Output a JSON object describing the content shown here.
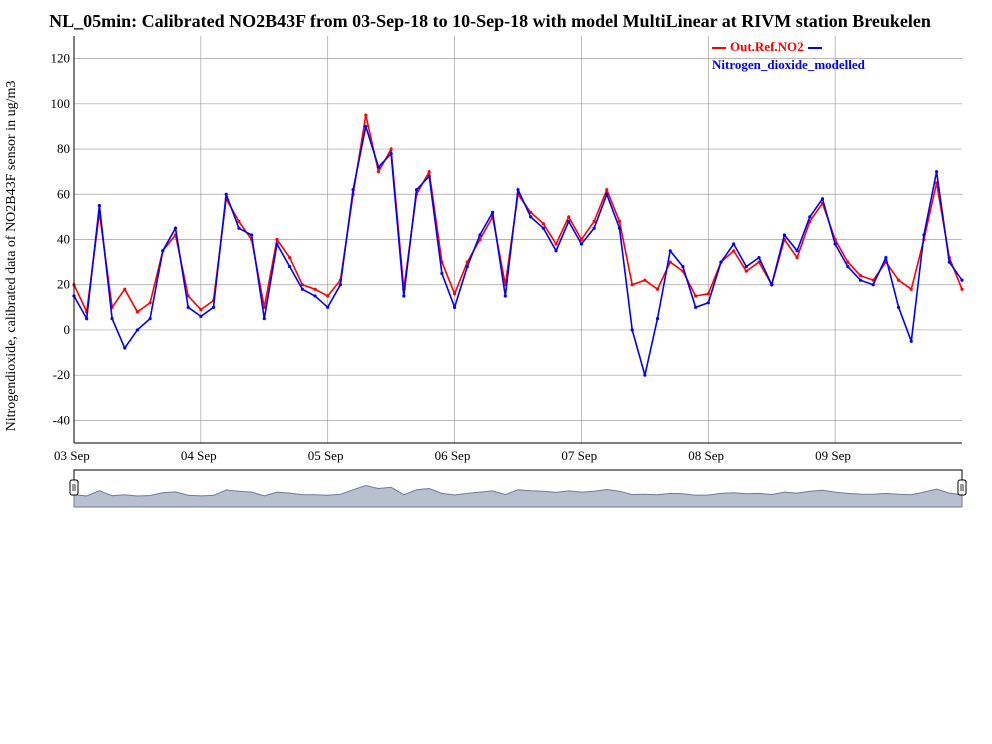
{
  "chart_data": {
    "type": "line",
    "title": "NL_05min: Calibrated NO2B43F from 03-Sep-18 to 10-Sep-18 with model MultiLinear at RIVM station Breukelen",
    "ylabel": "Nitrogendioxide, calibrated data of NO2B43F sensor in ug/m3",
    "xlabel": "",
    "x_ticks": [
      "03 Sep",
      "04 Sep",
      "05 Sep",
      "06 Sep",
      "07 Sep",
      "08 Sep",
      "09 Sep"
    ],
    "y_ticks": [
      -40,
      -20,
      0,
      20,
      40,
      60,
      80,
      100,
      120
    ],
    "xlim": [
      0,
      7
    ],
    "ylim": [
      -50,
      130
    ],
    "grid": true,
    "legend_position": "top-right",
    "series": [
      {
        "name": "Out.Ref.NO2",
        "color": "#ff0000",
        "x": [
          0,
          0.1,
          0.2,
          0.3,
          0.4,
          0.5,
          0.6,
          0.7,
          0.8,
          0.9,
          1.0,
          1.1,
          1.2,
          1.3,
          1.4,
          1.5,
          1.6,
          1.7,
          1.8,
          1.9,
          2.0,
          2.1,
          2.2,
          2.3,
          2.4,
          2.5,
          2.6,
          2.7,
          2.8,
          2.9,
          3.0,
          3.1,
          3.2,
          3.3,
          3.4,
          3.5,
          3.6,
          3.7,
          3.8,
          3.9,
          4.0,
          4.1,
          4.2,
          4.3,
          4.4,
          4.5,
          4.6,
          4.7,
          4.8,
          4.9,
          5.0,
          5.1,
          5.2,
          5.3,
          5.4,
          5.5,
          5.6,
          5.7,
          5.8,
          5.9,
          6.0,
          6.1,
          6.2,
          6.3,
          6.4,
          6.5,
          6.6,
          6.7,
          6.8,
          6.9,
          7.0
        ],
        "y": [
          20,
          8,
          52,
          10,
          18,
          8,
          12,
          35,
          42,
          15,
          9,
          13,
          58,
          48,
          40,
          10,
          40,
          32,
          20,
          18,
          15,
          22,
          60,
          95,
          70,
          80,
          18,
          60,
          70,
          30,
          16,
          30,
          40,
          50,
          20,
          60,
          52,
          47,
          38,
          50,
          40,
          48,
          62,
          48,
          20,
          22,
          18,
          30,
          26,
          15,
          16,
          30,
          35,
          26,
          30,
          20,
          40,
          32,
          48,
          56,
          40,
          30,
          24,
          22,
          30,
          22,
          18,
          40,
          65,
          32,
          18
        ]
      },
      {
        "name": "Nitrogen_dioxide_modelled",
        "color": "#0000ff",
        "x": [
          0,
          0.1,
          0.2,
          0.3,
          0.4,
          0.5,
          0.6,
          0.7,
          0.8,
          0.9,
          1.0,
          1.1,
          1.2,
          1.3,
          1.4,
          1.5,
          1.6,
          1.7,
          1.8,
          1.9,
          2.0,
          2.1,
          2.2,
          2.3,
          2.4,
          2.5,
          2.6,
          2.7,
          2.8,
          2.9,
          3.0,
          3.1,
          3.2,
          3.3,
          3.4,
          3.5,
          3.6,
          3.7,
          3.8,
          3.9,
          4.0,
          4.1,
          4.2,
          4.3,
          4.4,
          4.5,
          4.6,
          4.7,
          4.8,
          4.9,
          5.0,
          5.1,
          5.2,
          5.3,
          5.4,
          5.5,
          5.6,
          5.7,
          5.8,
          5.9,
          6.0,
          6.1,
          6.2,
          6.3,
          6.4,
          6.5,
          6.6,
          6.7,
          6.8,
          6.9,
          7.0
        ],
        "y": [
          15,
          5,
          55,
          5,
          -8,
          0,
          5,
          35,
          45,
          10,
          6,
          10,
          60,
          45,
          42,
          5,
          38,
          28,
          18,
          15,
          10,
          20,
          62,
          90,
          72,
          78,
          15,
          62,
          68,
          25,
          10,
          28,
          42,
          52,
          15,
          62,
          50,
          45,
          35,
          48,
          38,
          45,
          60,
          45,
          0,
          -20,
          5,
          35,
          28,
          10,
          12,
          30,
          38,
          28,
          32,
          20,
          42,
          35,
          50,
          58,
          38,
          28,
          22,
          20,
          32,
          10,
          -5,
          42,
          70,
          30,
          22
        ]
      }
    ]
  },
  "legend": {
    "item1": "Out.Ref.NO2",
    "item2": "Nitrogen_dioxide_modelled"
  }
}
